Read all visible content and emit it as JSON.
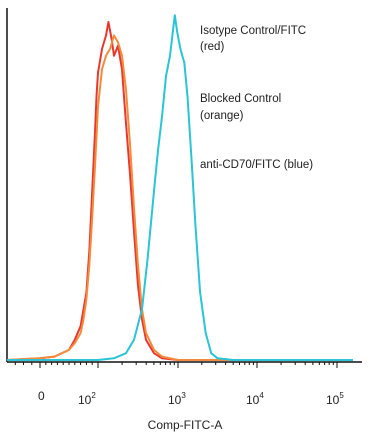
{
  "chart_data": {
    "type": "histogram",
    "xlabel": "Comp-FITC-A",
    "ylabel": "",
    "x_scale": "biexponential",
    "x_ticks": [
      {
        "base": "0",
        "exp": ""
      },
      {
        "base": "10",
        "exp": "2"
      },
      {
        "base": "10",
        "exp": "3"
      },
      {
        "base": "10",
        "exp": "4"
      },
      {
        "base": "10",
        "exp": "5"
      }
    ],
    "legend_placement": "top-right",
    "annotations": [
      {
        "line1": "Isotype Control/FITC",
        "line2": "(red)"
      },
      {
        "line1": "Blocked Control",
        "line2": "(orange)"
      },
      {
        "line1": "anti-CD70/FITC (blue)",
        "line2": ""
      }
    ],
    "series": [
      {
        "color": "#e8382e",
        "points": [
          [
            -0.5,
            0
          ],
          [
            0,
            0.005
          ],
          [
            0.5,
            0.01
          ],
          [
            1,
            0.03
          ],
          [
            1.2,
            0.06
          ],
          [
            1.4,
            0.1
          ],
          [
            1.6,
            0.2
          ],
          [
            1.7,
            0.32
          ],
          [
            1.8,
            0.5
          ],
          [
            1.9,
            0.68
          ],
          [
            1.95,
            0.78
          ],
          [
            2.0,
            0.85
          ],
          [
            2.05,
            0.92
          ],
          [
            2.1,
            0.96
          ],
          [
            2.13,
            1.0
          ],
          [
            2.17,
            0.95
          ],
          [
            2.2,
            0.9
          ],
          [
            2.25,
            0.93
          ],
          [
            2.3,
            0.86
          ],
          [
            2.35,
            0.7
          ],
          [
            2.4,
            0.55
          ],
          [
            2.45,
            0.38
          ],
          [
            2.5,
            0.22
          ],
          [
            2.55,
            0.12
          ],
          [
            2.6,
            0.06
          ],
          [
            2.7,
            0.02
          ],
          [
            2.8,
            0.005
          ],
          [
            3.0,
            0
          ],
          [
            5.2,
            0
          ]
        ]
      },
      {
        "color": "#f28c3c",
        "points": [
          [
            -0.5,
            0
          ],
          [
            0,
            0.005
          ],
          [
            0.5,
            0.01
          ],
          [
            1,
            0.03
          ],
          [
            1.2,
            0.05
          ],
          [
            1.4,
            0.08
          ],
          [
            1.5,
            0.12
          ],
          [
            1.6,
            0.18
          ],
          [
            1.7,
            0.28
          ],
          [
            1.8,
            0.42
          ],
          [
            1.9,
            0.58
          ],
          [
            1.95,
            0.66
          ],
          [
            2.0,
            0.75
          ],
          [
            2.05,
            0.86
          ],
          [
            2.1,
            0.9
          ],
          [
            2.15,
            0.92
          ],
          [
            2.2,
            0.96
          ],
          [
            2.25,
            0.94
          ],
          [
            2.3,
            0.9
          ],
          [
            2.35,
            0.8
          ],
          [
            2.4,
            0.64
          ],
          [
            2.45,
            0.45
          ],
          [
            2.5,
            0.28
          ],
          [
            2.55,
            0.15
          ],
          [
            2.6,
            0.08
          ],
          [
            2.7,
            0.03
          ],
          [
            2.8,
            0.01
          ],
          [
            3.0,
            0
          ],
          [
            5.2,
            0
          ]
        ]
      },
      {
        "color": "#2ac4d4",
        "points": [
          [
            -0.5,
            0
          ],
          [
            2.0,
            0
          ],
          [
            2.2,
            0.005
          ],
          [
            2.35,
            0.02
          ],
          [
            2.45,
            0.06
          ],
          [
            2.55,
            0.15
          ],
          [
            2.62,
            0.3
          ],
          [
            2.7,
            0.5
          ],
          [
            2.75,
            0.62
          ],
          [
            2.8,
            0.72
          ],
          [
            2.85,
            0.84
          ],
          [
            2.9,
            0.9
          ],
          [
            2.93,
            0.96
          ],
          [
            2.96,
            1.02
          ],
          [
            2.99,
            0.97
          ],
          [
            3.03,
            0.92
          ],
          [
            3.08,
            0.88
          ],
          [
            3.12,
            0.78
          ],
          [
            3.17,
            0.6
          ],
          [
            3.22,
            0.4
          ],
          [
            3.28,
            0.2
          ],
          [
            3.35,
            0.08
          ],
          [
            3.42,
            0.02
          ],
          [
            3.5,
            0.005
          ],
          [
            3.7,
            0
          ],
          [
            5.2,
            0
          ]
        ]
      }
    ]
  }
}
